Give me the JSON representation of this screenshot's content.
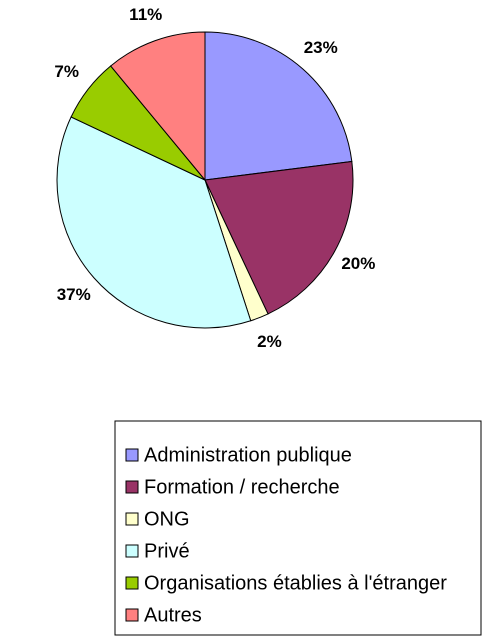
{
  "chart_data": {
    "type": "pie",
    "categories": [
      "Administration publique",
      "Formation / recherche",
      "ONG",
      "Privé",
      "Organisations établies à l'étranger",
      "Autres"
    ],
    "values": [
      23,
      20,
      2,
      37,
      7,
      11
    ],
    "value_labels": [
      "23%",
      "20%",
      "2%",
      "37%",
      "7%",
      "11%"
    ],
    "colors": [
      "#9999ff",
      "#993366",
      "#ffffcc",
      "#ccffff",
      "#99cc00",
      "#ff8080"
    ]
  }
}
